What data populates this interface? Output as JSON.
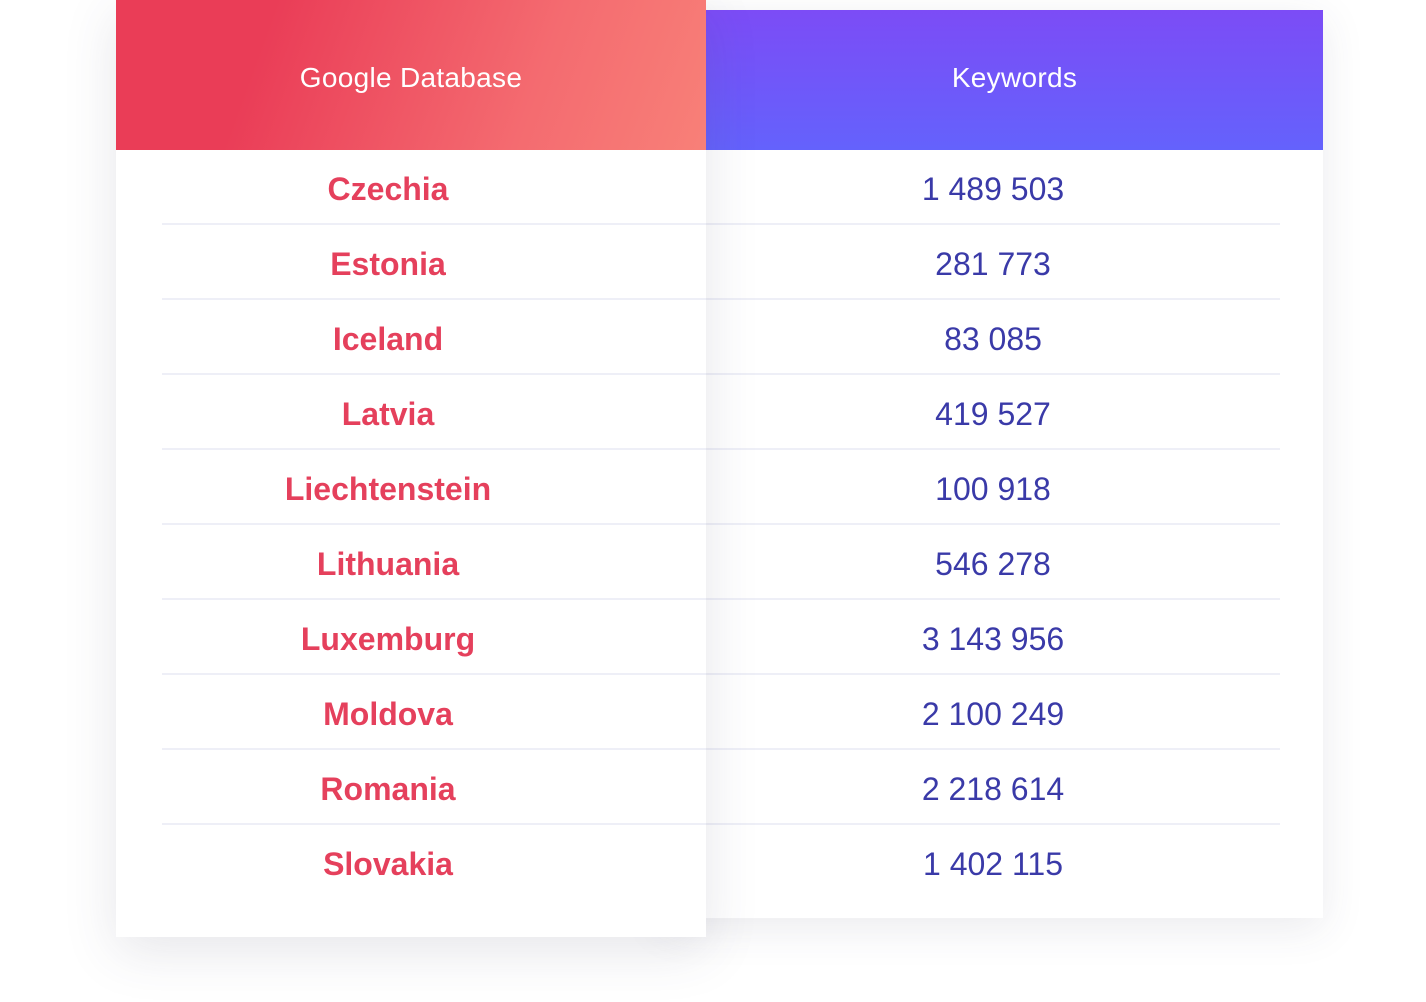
{
  "table": {
    "headers": {
      "database": "Google Database",
      "keywords": "Keywords"
    },
    "rows": [
      {
        "country": "Czechia",
        "keywords": "1 489 503"
      },
      {
        "country": "Estonia",
        "keywords": "281 773"
      },
      {
        "country": "Iceland",
        "keywords": "83 085"
      },
      {
        "country": "Latvia",
        "keywords": "419 527"
      },
      {
        "country": "Liechtenstein",
        "keywords": "100 918"
      },
      {
        "country": "Lithuania",
        "keywords": "546 278"
      },
      {
        "country": "Luxemburg",
        "keywords": "3 143 956"
      },
      {
        "country": "Moldova",
        "keywords": "2 100 249"
      },
      {
        "country": "Romania",
        "keywords": "2 218 614"
      },
      {
        "country": "Slovakia",
        "keywords": "1 402 115"
      }
    ]
  },
  "colors": {
    "database_header_start": "#ea3d57",
    "database_header_end": "#f88078",
    "keywords_header_start": "#7c4cf6",
    "keywords_header_end": "#6462fc",
    "country_text": "#e5405c",
    "keywords_text": "#3a3aa8",
    "divider": "#eeeff7"
  }
}
